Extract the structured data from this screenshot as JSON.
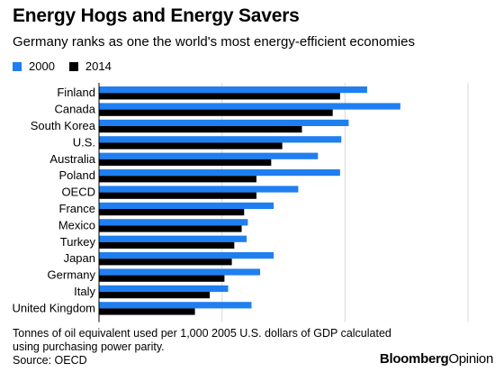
{
  "header": {
    "title": "Energy Hogs and Energy Savers",
    "subtitle": "Germany ranks as one the world's most energy-efficient economies"
  },
  "colors": {
    "series_2000": "#1f7ff0",
    "series_2014": "#000000",
    "grid": "#d9d9d9"
  },
  "chart_data": {
    "type": "bar",
    "orientation": "horizontal",
    "categories": [
      "Finland",
      "Canada",
      "South Korea",
      "U.S.",
      "Australia",
      "Poland",
      "OECD",
      "France",
      "Mexico",
      "Turkey",
      "Japan",
      "Germany",
      "Italy",
      "United Kingdom"
    ],
    "series": [
      {
        "name": "2000",
        "values": [
          0.218,
          0.245,
          0.203,
          0.197,
          0.178,
          0.196,
          0.162,
          0.142,
          0.121,
          0.12,
          0.142,
          0.131,
          0.105,
          0.124
        ]
      },
      {
        "name": "2014",
        "values": [
          0.196,
          0.19,
          0.165,
          0.149,
          0.14,
          0.128,
          0.128,
          0.118,
          0.116,
          0.11,
          0.108,
          0.102,
          0.09,
          0.078
        ]
      }
    ],
    "xlim": [
      0,
      0.3
    ],
    "xticks": [
      "0.00",
      "0.10",
      "0.20",
      "0.30"
    ],
    "grid": true,
    "legend": "top-left"
  },
  "footer": {
    "note_line1": "Tonnes of oil equivalent used per 1,000 2005 U.S. dollars of GDP calculated",
    "note_line2": "using purchasing power parity.",
    "source": "Source: OECD",
    "brand_part1": "Bloomberg",
    "brand_part2": "Opinion"
  }
}
